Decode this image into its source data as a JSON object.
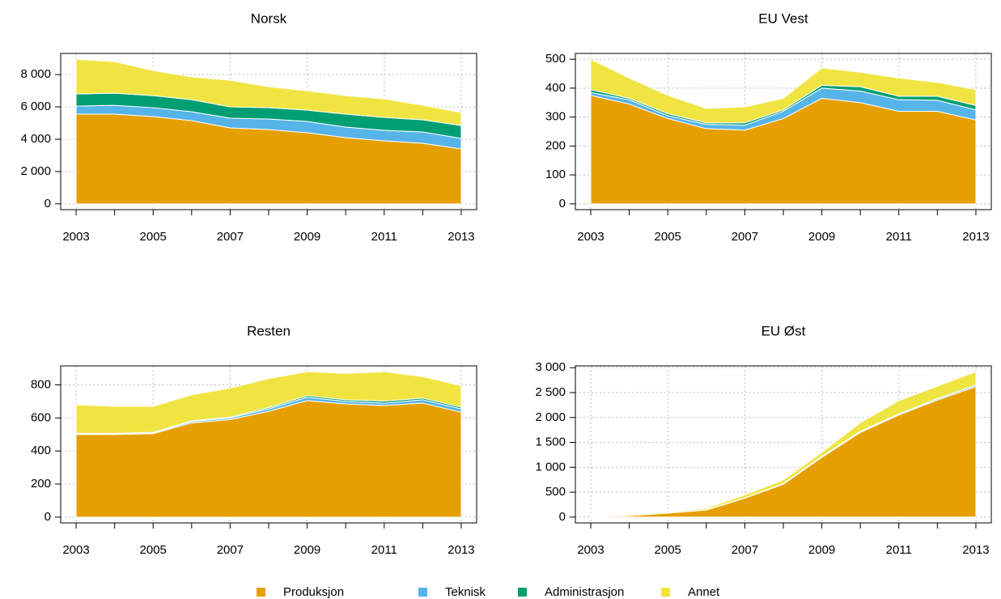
{
  "chart_data": [
    {
      "type": "area",
      "stacked": true,
      "title": "Norsk",
      "x": [
        2003,
        2004,
        2005,
        2006,
        2007,
        2008,
        2009,
        2010,
        2011,
        2012,
        2013
      ],
      "xlim": [
        2002.6,
        2013.4
      ],
      "xticks": [
        2003,
        2005,
        2007,
        2009,
        2011,
        2013
      ],
      "ylim": [
        -360,
        9310
      ],
      "yticks": [
        0,
        {
          "value": 2000,
          "label": "2 000"
        },
        {
          "value": 4000,
          "label": "4 000"
        },
        {
          "value": 6000,
          "label": "6 000"
        },
        {
          "value": 8000,
          "label": "8 000"
        }
      ],
      "grid": true,
      "series": [
        {
          "values": [
            5550,
            5550,
            5400,
            5150,
            4700,
            4600,
            4400,
            4100,
            3900,
            3750,
            3400
          ]
        },
        {
          "values": [
            500,
            550,
            550,
            550,
            600,
            650,
            700,
            650,
            650,
            700,
            650
          ]
        },
        {
          "values": [
            750,
            750,
            750,
            750,
            700,
            700,
            700,
            800,
            800,
            750,
            800
          ]
        },
        {
          "values": [
            2150,
            1950,
            1550,
            1400,
            1650,
            1300,
            1200,
            1150,
            1150,
            900,
            800
          ]
        }
      ]
    },
    {
      "type": "area",
      "stacked": true,
      "title": "EU Vest",
      "x": [
        2003,
        2004,
        2005,
        2006,
        2007,
        2008,
        2009,
        2010,
        2011,
        2012,
        2013
      ],
      "xlim": [
        2002.6,
        2013.4
      ],
      "xticks": [
        2003,
        2005,
        2007,
        2009,
        2011,
        2013
      ],
      "ylim": [
        -20,
        520
      ],
      "yticks": [
        0,
        100,
        200,
        300,
        400,
        500
      ],
      "grid": true,
      "series": [
        {
          "values": [
            375,
            345,
            295,
            260,
            255,
            295,
            365,
            350,
            320,
            320,
            290
          ]
        },
        {
          "values": [
            10,
            15,
            10,
            15,
            17,
            25,
            35,
            40,
            40,
            38,
            35
          ]
        },
        {
          "values": [
            10,
            5,
            7,
            5,
            8,
            5,
            10,
            15,
            12,
            14,
            15
          ]
        },
        {
          "values": [
            105,
            70,
            63,
            50,
            55,
            40,
            60,
            50,
            63,
            48,
            55
          ]
        }
      ]
    },
    {
      "type": "area",
      "stacked": true,
      "title": "Resten",
      "x": [
        2003,
        2004,
        2005,
        2006,
        2007,
        2008,
        2009,
        2010,
        2011,
        2012,
        2013
      ],
      "xlim": [
        2002.6,
        2013.4
      ],
      "xticks": [
        2003,
        2005,
        2007,
        2009,
        2011,
        2013
      ],
      "ylim": [
        -35,
        915
      ],
      "yticks": [
        0,
        200,
        400,
        600,
        800
      ],
      "grid": true,
      "series": [
        {
          "values": [
            500,
            500,
            505,
            570,
            590,
            640,
            705,
            685,
            675,
            690,
            635
          ]
        },
        {
          "values": [
            5,
            5,
            5,
            8,
            10,
            15,
            20,
            15,
            15,
            20,
            20
          ]
        },
        {
          "values": [
            3,
            2,
            3,
            5,
            5,
            8,
            10,
            10,
            12,
            10,
            10
          ]
        },
        {
          "values": [
            172,
            163,
            157,
            157,
            175,
            175,
            145,
            160,
            178,
            130,
            130
          ]
        }
      ]
    },
    {
      "type": "area",
      "stacked": true,
      "title": "EU Øst",
      "x": [
        2003,
        2004,
        2005,
        2006,
        2007,
        2008,
        2009,
        2010,
        2011,
        2012,
        2013
      ],
      "xlim": [
        2002.6,
        2013.4
      ],
      "xticks": [
        2003,
        2005,
        2007,
        2009,
        2011,
        2013
      ],
      "ylim": [
        -117,
        3037
      ],
      "yticks": [
        0,
        500,
        {
          "value": 1000,
          "label": "1 000"
        },
        {
          "value": 1500,
          "label": "1 500"
        },
        {
          "value": 2000,
          "label": "2 000"
        },
        {
          "value": 2500,
          "label": "2 500"
        },
        {
          "value": 3000,
          "label": "3 000"
        }
      ],
      "grid": true,
      "series": [
        {
          "values": [
            10,
            30,
            80,
            140,
            380,
            660,
            1200,
            1700,
            2050,
            2350,
            2620
          ]
        },
        {
          "values": [
            0,
            0,
            2,
            3,
            5,
            10,
            15,
            20,
            20,
            25,
            30
          ]
        },
        {
          "values": [
            0,
            0,
            1,
            2,
            3,
            5,
            5,
            5,
            5,
            5,
            5
          ]
        },
        {
          "values": [
            5,
            10,
            15,
            30,
            60,
            70,
            80,
            170,
            265,
            250,
            265
          ]
        }
      ]
    }
  ],
  "legend": [
    {
      "name": "Produksjon",
      "color": "#e69f00"
    },
    {
      "name": "Teknisk",
      "color": "#56b4e9"
    },
    {
      "name": "Administrasjon",
      "color": "#009e73"
    },
    {
      "name": "Annet",
      "color": "#f0e442"
    }
  ]
}
